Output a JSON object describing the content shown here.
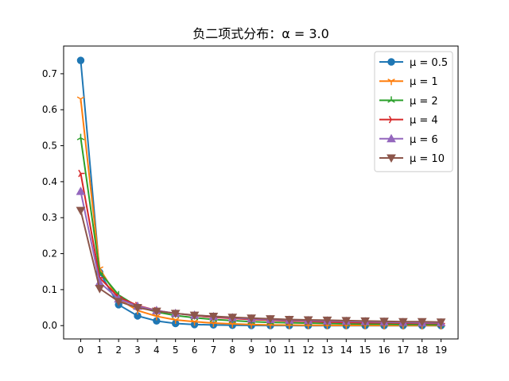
{
  "chart_data": {
    "type": "line",
    "title": "负二项式分布：α = 3.0",
    "xlabel": "",
    "ylabel": "",
    "x": [
      0,
      1,
      2,
      3,
      4,
      5,
      6,
      7,
      8,
      9,
      10,
      11,
      12,
      13,
      14,
      15,
      16,
      17,
      18,
      19
    ],
    "xlim": [
      -0.9,
      19.9
    ],
    "ylim": [
      -0.037,
      0.777
    ],
    "yticks": [
      0.0,
      0.1,
      0.2,
      0.3,
      0.4,
      0.5,
      0.6,
      0.7
    ],
    "ytick_labels": [
      "0.0",
      "0.1",
      "0.2",
      "0.3",
      "0.4",
      "0.5",
      "0.6",
      "0.7"
    ],
    "grid": false,
    "legend_position": "top-right",
    "series": [
      {
        "name": "μ = 0.5",
        "color": "#1f77b4",
        "marker": "circle",
        "values": [
          0.737,
          0.148,
          0.058,
          0.027,
          0.013,
          0.006,
          0.003,
          0.002,
          0.001,
          0.0005,
          0.0002,
          0.0001,
          0.0,
          0.0,
          0.0,
          0.0,
          0.0,
          0.0,
          0.0,
          0.0
        ]
      },
      {
        "name": "μ = 1",
        "color": "#ff7f0e",
        "marker": "tri_down",
        "values": [
          0.63,
          0.158,
          0.074,
          0.042,
          0.026,
          0.016,
          0.011,
          0.007,
          0.005,
          0.003,
          0.002,
          0.0015,
          0.001,
          0.0007,
          0.0005,
          0.0004,
          0.0003,
          0.0002,
          0.0001,
          0.0001
        ]
      },
      {
        "name": "μ = 2",
        "color": "#2ca02c",
        "marker": "tri_up",
        "values": [
          0.522,
          0.149,
          0.085,
          0.053,
          0.038,
          0.028,
          0.022,
          0.017,
          0.014,
          0.011,
          0.009,
          0.008,
          0.007,
          0.006,
          0.005,
          0.004,
          0.004,
          0.003,
          0.003,
          0.002
        ]
      },
      {
        "name": "μ = 4",
        "color": "#d62728",
        "marker": "tri_right",
        "values": [
          0.423,
          0.133,
          0.079,
          0.056,
          0.042,
          0.034,
          0.028,
          0.023,
          0.02,
          0.017,
          0.015,
          0.013,
          0.012,
          0.01,
          0.009,
          0.008,
          0.008,
          0.007,
          0.006,
          0.006
        ]
      },
      {
        "name": "μ = 6",
        "color": "#9467bd",
        "marker": "triangle_up",
        "values": [
          0.373,
          0.12,
          0.074,
          0.054,
          0.042,
          0.034,
          0.029,
          0.025,
          0.022,
          0.019,
          0.017,
          0.015,
          0.014,
          0.013,
          0.012,
          0.011,
          0.01,
          0.009,
          0.008,
          0.008
        ]
      },
      {
        "name": "μ = 10",
        "color": "#8c564b",
        "marker": "triangle_down",
        "values": [
          0.32,
          0.103,
          0.067,
          0.05,
          0.04,
          0.034,
          0.029,
          0.026,
          0.023,
          0.021,
          0.019,
          0.017,
          0.016,
          0.015,
          0.014,
          0.013,
          0.012,
          0.011,
          0.011,
          0.01
        ]
      }
    ]
  }
}
